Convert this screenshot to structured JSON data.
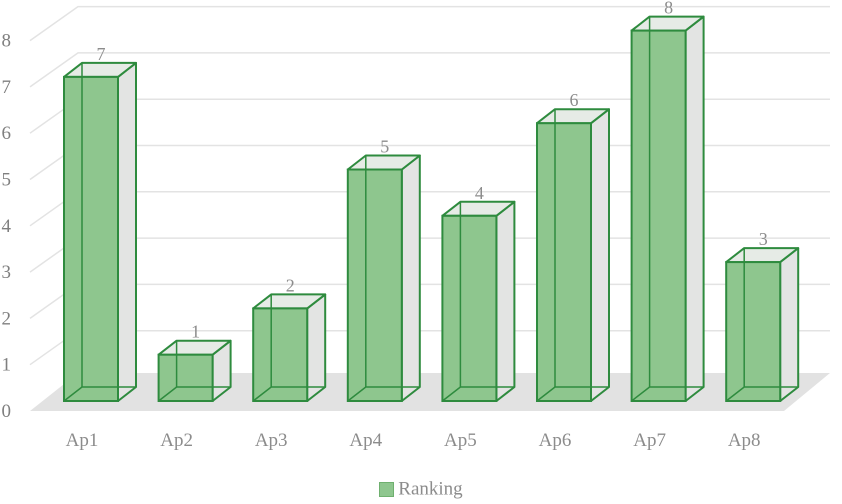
{
  "chart_data": {
    "type": "bar",
    "categories": [
      "Ap1",
      "Ap2",
      "Ap3",
      "Ap4",
      "Ap5",
      "Ap6",
      "Ap7",
      "Ap8"
    ],
    "series": [
      {
        "name": "Ranking",
        "values": [
          7,
          1,
          2,
          5,
          4,
          6,
          8,
          3
        ]
      }
    ],
    "ylim": [
      0,
      8
    ],
    "yticks": [
      0,
      1,
      2,
      3,
      4,
      5,
      6,
      7,
      8
    ],
    "legend_position": "bottom",
    "grid": true,
    "style": "3d-column",
    "colors": {
      "bar_front": "#8ec68e",
      "bar_side": "#e3e4e3",
      "bar_top": "#e6ebe6",
      "bar_edge": "#2e8b3e",
      "grid": "#e3e3e3",
      "floor": "#e2e2e2"
    }
  }
}
